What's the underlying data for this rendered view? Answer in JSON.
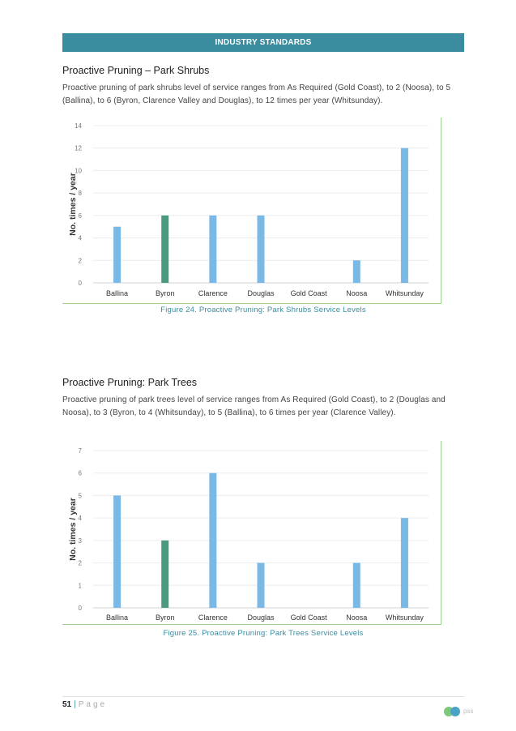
{
  "header": {
    "title": "INDUSTRY STANDARDS"
  },
  "sections": [
    {
      "title": "Proactive Pruning – Park Shrubs",
      "body": "Proactive pruning of park shrubs level of service ranges from As Required (Gold Coast), to 2 (Noosa), to 5 (Ballina), to 6 (Byron, Clarence Valley and Douglas), to 12 times per year (Whitsunday).",
      "caption": "Figure 24.     Proactive Pruning: Park Shrubs Service Levels"
    },
    {
      "title": "Proactive Pruning: Park Trees",
      "body": "Proactive pruning of park trees level of service ranges from As Required (Gold Coast), to 2 (Douglas and Noosa), to 3 (Byron, to 4 (Whitsunday), to 5 (Ballina), to 6 times per year (Clarence Valley).",
      "caption": "Figure 25.     Proactive Pruning: Park Trees Service Levels"
    }
  ],
  "chart_data": [
    {
      "type": "bar",
      "categories": [
        "Ballina",
        "Byron",
        "Clarence",
        "Douglas",
        "Gold Coast",
        "Noosa",
        "Whitsunday"
      ],
      "values": [
        5,
        6,
        6,
        6,
        0,
        2,
        12
      ],
      "highlight_category": "Byron",
      "ylabel": "No. times / year",
      "ylim": [
        0,
        14
      ],
      "yticks": [
        0,
        2,
        4,
        6,
        8,
        10,
        12,
        14
      ],
      "grid": true,
      "colors": {
        "bar": "#7ab8e6",
        "highlight": "#4a9a80"
      }
    },
    {
      "type": "bar",
      "categories": [
        "Ballina",
        "Byron",
        "Clarence",
        "Douglas",
        "Gold Coast",
        "Noosa",
        "Whitsunday"
      ],
      "values": [
        5,
        3,
        6,
        2,
        0,
        2,
        4
      ],
      "highlight_category": "Byron",
      "ylabel": "No. times / year",
      "ylim": [
        0,
        7
      ],
      "yticks": [
        0,
        1,
        2,
        3,
        4,
        5,
        6,
        7
      ],
      "grid": true,
      "colors": {
        "bar": "#7ab8e6",
        "highlight": "#4a9a80"
      }
    }
  ],
  "footer": {
    "page_number": "51",
    "separator": "|",
    "page_label": "Page",
    "logo_text": "pss"
  }
}
